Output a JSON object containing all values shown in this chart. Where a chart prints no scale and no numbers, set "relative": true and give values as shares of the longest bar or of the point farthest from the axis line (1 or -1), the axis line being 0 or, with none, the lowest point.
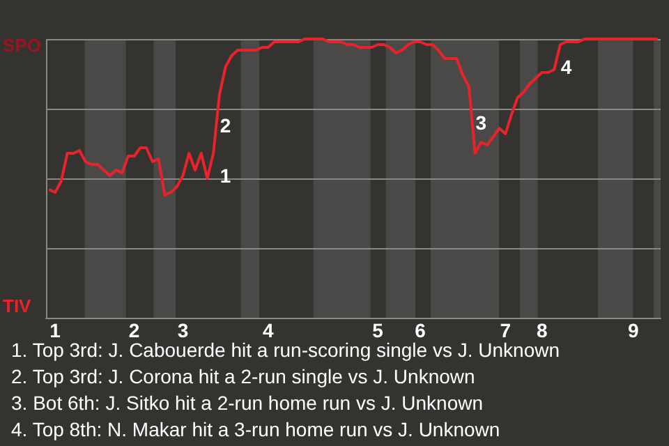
{
  "chart_data": {
    "type": "line",
    "relative": true,
    "grid": "y",
    "marker": "none",
    "line_style": "solid",
    "categories": [
      null,
      "1",
      null,
      null,
      null,
      null,
      null,
      null,
      null,
      null,
      null,
      null,
      null,
      null,
      "2",
      null,
      null,
      null,
      null,
      null,
      null,
      null,
      "3",
      null,
      null,
      null,
      null,
      null,
      null,
      null,
      null,
      null,
      null,
      null,
      null,
      null,
      "4",
      null,
      null,
      null,
      null,
      null,
      null,
      null,
      null,
      null,
      null,
      null,
      null,
      null,
      null,
      null,
      null,
      null,
      "5",
      null,
      null,
      null,
      null,
      null,
      null,
      "6",
      null,
      null,
      null,
      null,
      null,
      null,
      null,
      null,
      null,
      null,
      null,
      null,
      null,
      "7",
      null,
      null,
      null,
      null,
      null,
      "8",
      null,
      null,
      null,
      null,
      null,
      null,
      null,
      null,
      null,
      null,
      null,
      null,
      null,
      null,
      "9",
      null,
      null,
      null,
      null
    ],
    "series": [
      {
        "color": "#e8232b",
        "values": [
          0.46,
          0.45,
          0.49,
          0.59,
          0.59,
          0.6,
          0.56,
          0.55,
          0.55,
          0.53,
          0.51,
          0.53,
          0.52,
          0.58,
          0.58,
          0.61,
          0.61,
          0.56,
          0.57,
          0.44,
          0.45,
          0.47,
          0.51,
          0.59,
          0.53,
          0.59,
          0.5,
          0.59,
          0.8,
          0.9,
          0.94,
          0.96,
          0.96,
          0.96,
          0.96,
          0.97,
          0.97,
          0.99,
          0.99,
          0.99,
          0.99,
          0.99,
          1.0,
          1.0,
          1.0,
          1.0,
          0.99,
          0.99,
          0.99,
          0.98,
          0.98,
          0.97,
          0.97,
          0.97,
          0.98,
          0.98,
          0.97,
          0.95,
          0.96,
          0.98,
          0.99,
          0.99,
          0.98,
          0.98,
          0.96,
          0.93,
          0.93,
          0.93,
          0.87,
          0.83,
          0.59,
          0.63,
          0.62,
          0.65,
          0.68,
          0.66,
          0.73,
          0.79,
          0.81,
          0.84,
          0.86,
          0.88,
          0.88,
          0.89,
          0.98,
          0.99,
          0.99,
          0.99,
          1.0,
          1.0,
          1.0,
          1.0,
          1.0,
          1.0,
          1.0,
          1.0,
          1.0,
          1.0,
          1.0,
          1.0,
          1.0
        ]
      }
    ],
    "annotations": [
      "SPO",
      "TIV",
      "1",
      "2",
      "3",
      "4",
      "1. Top 3rd: J. Cabouerde hit a run-scoring single vs J. Unknown",
      "2. Top 3rd: J. Corona hit a 2-run single vs J. Unknown",
      "3. Bot 6th: J. Sitko hit a 2-run home run vs J. Unknown",
      "4. Top 8th: N. Makar hit a 3-run home run vs J. Unknown"
    ]
  }
}
